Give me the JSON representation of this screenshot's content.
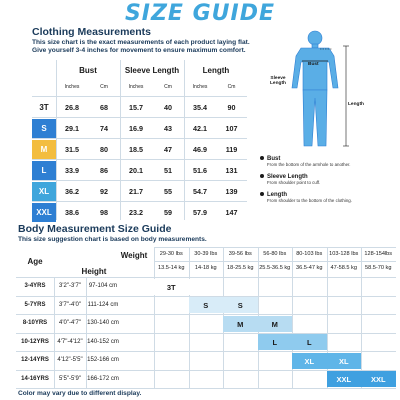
{
  "title": "SIZE GUIDE",
  "clothing": {
    "heading": "Clothing Measurements",
    "line1": "This size chart is the exact measurements of each product laying flat.",
    "line2": "Give yourself 3-4 inches for movement to ensure maximum comfort.",
    "groups": [
      "Bust",
      "Sleeve Length",
      "Length"
    ],
    "units": [
      "Inches",
      "Cm",
      "Inches",
      "Cm",
      "Inches",
      "Cm"
    ],
    "rows": [
      {
        "size": "3T",
        "values": [
          "26.8",
          "68",
          "15.7",
          "40",
          "35.4",
          "90"
        ],
        "color": "#ffffff",
        "text": "#1a1a1a"
      },
      {
        "size": "S",
        "values": [
          "29.1",
          "74",
          "16.9",
          "43",
          "42.1",
          "107"
        ],
        "color": "#2e7fd3",
        "text": "#ffffff"
      },
      {
        "size": "M",
        "values": [
          "31.5",
          "80",
          "18.5",
          "47",
          "46.9",
          "119"
        ],
        "color": "#f3bd3f",
        "text": "#ffffff"
      },
      {
        "size": "L",
        "values": [
          "33.9",
          "86",
          "20.1",
          "51",
          "51.6",
          "131"
        ],
        "color": "#2e7fd3",
        "text": "#ffffff"
      },
      {
        "size": "XL",
        "values": [
          "36.2",
          "92",
          "21.7",
          "55",
          "54.7",
          "139"
        ],
        "color": "#3fa6dc",
        "text": "#ffffff"
      },
      {
        "size": "XXL",
        "values": [
          "38.6",
          "98",
          "23.2",
          "59",
          "57.9",
          "147"
        ],
        "color": "#2e7fd3",
        "text": "#ffffff"
      }
    ]
  },
  "figure": {
    "label_bust": "Bust",
    "label_sleeve": "Sleeve Length",
    "label_length": "Length",
    "color": "#5aaee6"
  },
  "notes": [
    {
      "title": "Bust",
      "desc": "From the bottom of the armhole to another."
    },
    {
      "title": "Sleeve Length",
      "desc": "From shoulder point to cuff."
    },
    {
      "title": "Length",
      "desc": "From shoulder to the bottom of the clothing."
    }
  ],
  "body": {
    "heading": "Body Measurement Size Guide",
    "line1": "This size suggestion chart is based on body measurements.",
    "age_label": "Age",
    "height_label": "Height",
    "weight_label": "Weight",
    "weights_lbs": [
      "29-30 lbs",
      "30-39 lbs",
      "39-56 lbs",
      "56-80 lbs",
      "80-103 lbs",
      "103-128 lbs",
      "128-154lbs"
    ],
    "weights_kg": [
      "13.5-14 kg",
      "14-18 kg",
      "18-25.5 kg",
      "25.5-36.5 kg",
      "36.5-47 kg",
      "47-58.5 kg",
      "58.5-70 kg"
    ],
    "rows": [
      {
        "age": "3-4YRS",
        "in": "3'2\"-3'7\"",
        "cm": "97-104 cm"
      },
      {
        "age": "5-7YRS",
        "in": "3'7\"-4'0\"",
        "cm": "111-124 cm"
      },
      {
        "age": "8-10YRS",
        "in": "4'0\"-4'7\"",
        "cm": "130-140 cm"
      },
      {
        "age": "10-12YRS",
        "in": "4'7\"-4'12\"",
        "cm": "140-152 cm"
      },
      {
        "age": "12-14YRS",
        "in": "4'12\"-5'5\"",
        "cm": "152-166 cm"
      },
      {
        "age": "14-16YRS",
        "in": "5'5\"-5'9\"",
        "cm": "166-172 cm"
      }
    ],
    "chips": [
      {
        "label": "3T",
        "row": 0,
        "cols": [
          0,
          1
        ],
        "color": "#ffffff",
        "text": "#1a1a1a"
      },
      {
        "label": "S",
        "row": 1,
        "cols": [
          1,
          2
        ],
        "color": "#d8ecf8",
        "text": "#1a1a1a"
      },
      {
        "label": "M",
        "row": 2,
        "cols": [
          2,
          3
        ],
        "color": "#b7dcf2",
        "text": "#1a1a1a"
      },
      {
        "label": "L",
        "row": 3,
        "cols": [
          3,
          4
        ],
        "color": "#8fcbee",
        "text": "#1a1a1a"
      },
      {
        "label": "XL",
        "row": 4,
        "cols": [
          4,
          5
        ],
        "color": "#5fb5e8",
        "text": "#ffffff"
      },
      {
        "label": "XXL",
        "row": 5,
        "cols": [
          5,
          6
        ],
        "color": "#3fa0e0",
        "text": "#ffffff"
      }
    ]
  },
  "footer": "Color may vary due to different display."
}
